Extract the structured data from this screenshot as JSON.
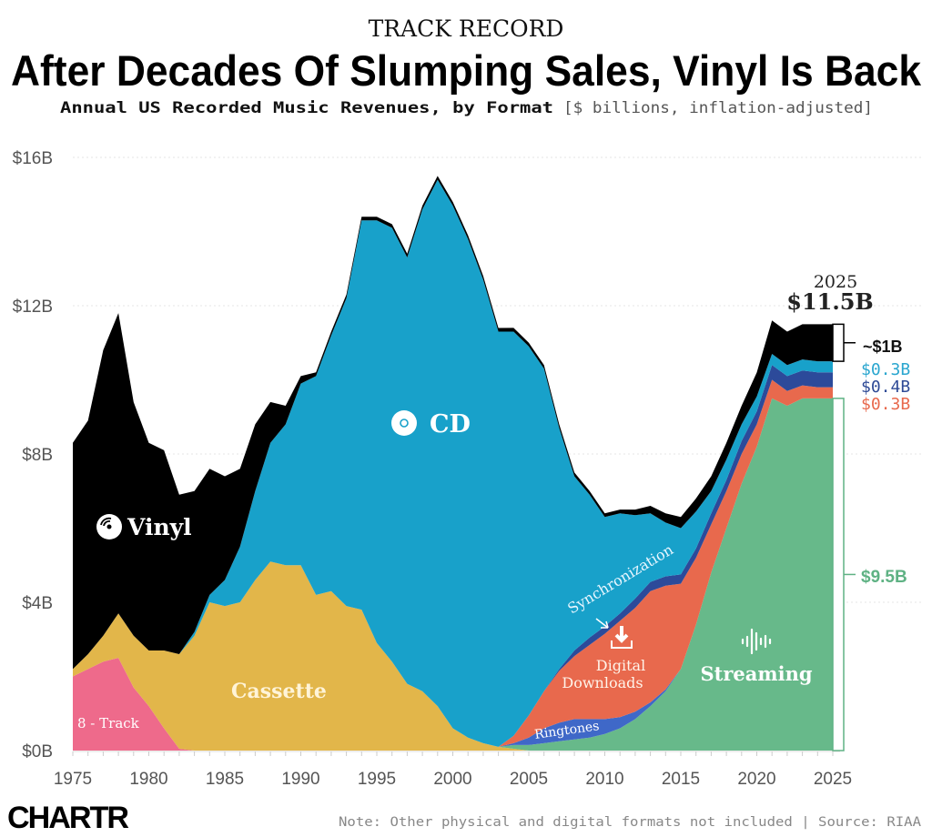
{
  "header": {
    "kicker": "TRACK RECORD",
    "title": "After Decades Of Slumping Sales, Vinyl Is Back",
    "subtitle_bold": "Annual US Recorded Music Revenues, by Format",
    "subtitle_units": "[$ billions, inflation-adjusted]"
  },
  "footer": {
    "logo": "CHARTR",
    "note": "Note: Other physical and digital formats not included | Source: RIAA"
  },
  "chart_data": {
    "type": "area",
    "stacked": true,
    "title": "After Decades Of Slumping Sales, Vinyl Is Back",
    "subtitle": "Annual US Recorded Music Revenues, by Format [$ billions, inflation-adjusted]",
    "xlim": [
      1975,
      2025
    ],
    "ylim": [
      0,
      16
    ],
    "x_ticks": [
      "1975",
      "1980",
      "1985",
      "1990",
      "1995",
      "2000",
      "2005",
      "2010",
      "2015",
      "2020",
      "2025"
    ],
    "y_ticks": [
      "$0B",
      "$4B",
      "$8B",
      "$12B",
      "$16B"
    ],
    "y_tick_values": [
      0,
      4,
      8,
      12,
      16
    ],
    "grid": "horizontal dotted",
    "x": [
      1975,
      1976,
      1977,
      1978,
      1979,
      1980,
      1981,
      1982,
      1983,
      1984,
      1985,
      1986,
      1987,
      1988,
      1989,
      1990,
      1991,
      1992,
      1993,
      1994,
      1995,
      1996,
      1997,
      1998,
      1999,
      2000,
      2001,
      2002,
      2003,
      2004,
      2005,
      2006,
      2007,
      2008,
      2009,
      2010,
      2011,
      2012,
      2013,
      2014,
      2015,
      2016,
      2017,
      2018,
      2019,
      2020,
      2021,
      2022,
      2023,
      2024,
      2025
    ],
    "series": [
      {
        "name": "8 - Track",
        "color": "#ee6a8b",
        "values": [
          2.0,
          2.2,
          2.4,
          2.5,
          1.7,
          1.2,
          0.6,
          0.05,
          0,
          0,
          0,
          0,
          0,
          0,
          0,
          0,
          0,
          0,
          0,
          0,
          0,
          0,
          0,
          0,
          0,
          0,
          0,
          0,
          0,
          0,
          0,
          0,
          0,
          0,
          0,
          0,
          0,
          0,
          0,
          0,
          0,
          0,
          0,
          0,
          0,
          0,
          0,
          0,
          0,
          0,
          0
        ]
      },
      {
        "name": "Cassette",
        "color": "#e2b64a",
        "values": [
          0.2,
          0.4,
          0.7,
          1.2,
          1.4,
          1.5,
          2.1,
          2.55,
          3.1,
          4.0,
          3.9,
          4.0,
          4.6,
          5.1,
          5.0,
          5.0,
          4.2,
          4.3,
          3.9,
          3.8,
          2.9,
          2.4,
          1.8,
          1.6,
          1.2,
          0.6,
          0.35,
          0.2,
          0.1,
          0.05,
          0,
          0,
          0,
          0,
          0,
          0,
          0,
          0,
          0,
          0,
          0,
          0,
          0,
          0,
          0,
          0,
          0,
          0,
          0,
          0,
          0
        ]
      },
      {
        "name": "Streaming",
        "color": "#67b98a",
        "values": [
          0,
          0,
          0,
          0,
          0,
          0,
          0,
          0,
          0,
          0,
          0,
          0,
          0,
          0,
          0,
          0,
          0,
          0,
          0,
          0,
          0,
          0,
          0,
          0,
          0,
          0,
          0,
          0,
          0,
          0.1,
          0.15,
          0.2,
          0.25,
          0.3,
          0.35,
          0.45,
          0.6,
          0.85,
          1.2,
          1.6,
          2.2,
          3.4,
          4.8,
          6.0,
          7.2,
          8.2,
          9.5,
          9.3,
          9.5,
          9.5,
          9.5
        ]
      },
      {
        "name": "Ringtones",
        "color": "#3f68c8",
        "values": [
          0,
          0,
          0,
          0,
          0,
          0,
          0,
          0,
          0,
          0,
          0,
          0,
          0,
          0,
          0,
          0,
          0,
          0,
          0,
          0,
          0,
          0,
          0,
          0,
          0,
          0,
          0,
          0,
          0,
          0.05,
          0.2,
          0.4,
          0.5,
          0.55,
          0.5,
          0.4,
          0.3,
          0.2,
          0.1,
          0.05,
          0,
          0,
          0,
          0,
          0,
          0,
          0,
          0,
          0,
          0,
          0
        ]
      },
      {
        "name": "Digital Downloads",
        "color": "#e8694d",
        "values": [
          0,
          0,
          0,
          0,
          0,
          0,
          0,
          0,
          0,
          0,
          0,
          0,
          0,
          0,
          0,
          0,
          0,
          0,
          0,
          0,
          0,
          0,
          0,
          0,
          0,
          0,
          0,
          0,
          0,
          0.2,
          0.6,
          1.0,
          1.4,
          1.7,
          2.0,
          2.3,
          2.6,
          2.8,
          3.0,
          2.8,
          2.3,
          1.8,
          1.3,
          1.0,
          0.8,
          0.6,
          0.5,
          0.4,
          0.35,
          0.3,
          0.3
        ]
      },
      {
        "name": "Synchronization",
        "color": "#2c4a9a",
        "values": [
          0,
          0,
          0,
          0,
          0,
          0,
          0,
          0,
          0,
          0,
          0,
          0,
          0,
          0,
          0,
          0,
          0,
          0,
          0,
          0,
          0,
          0,
          0,
          0,
          0,
          0,
          0,
          0,
          0,
          0,
          0,
          0,
          0.05,
          0.15,
          0.2,
          0.2,
          0.2,
          0.25,
          0.25,
          0.25,
          0.25,
          0.25,
          0.3,
          0.3,
          0.35,
          0.35,
          0.4,
          0.4,
          0.4,
          0.4,
          0.4
        ]
      },
      {
        "name": "CD",
        "color": "#18a1ca",
        "values": [
          0,
          0,
          0,
          0,
          0,
          0,
          0,
          0,
          0.1,
          0.2,
          0.7,
          1.5,
          2.4,
          3.2,
          3.8,
          4.9,
          5.9,
          6.9,
          8.3,
          10.5,
          11.4,
          11.7,
          11.5,
          13.0,
          14.2,
          14.1,
          13.45,
          12.5,
          11.2,
          10.9,
          9.95,
          8.7,
          6.5,
          4.7,
          3.85,
          2.95,
          2.7,
          2.25,
          1.85,
          1.45,
          1.25,
          1.0,
          0.6,
          0.55,
          0.45,
          0.4,
          0.3,
          0.3,
          0.3,
          0.3,
          0.3
        ]
      },
      {
        "name": "Vinyl",
        "color": "#000000",
        "values": [
          6.1,
          6.3,
          7.7,
          8.1,
          6.3,
          5.6,
          5.4,
          4.3,
          3.8,
          3.4,
          2.8,
          2.1,
          1.8,
          1.1,
          0.5,
          0.2,
          0.1,
          0.1,
          0.1,
          0.1,
          0.1,
          0.1,
          0.1,
          0.1,
          0.1,
          0.1,
          0.1,
          0.1,
          0.1,
          0.1,
          0.1,
          0.1,
          0.1,
          0.1,
          0.1,
          0.1,
          0.1,
          0.15,
          0.2,
          0.25,
          0.3,
          0.35,
          0.4,
          0.45,
          0.5,
          0.65,
          0.9,
          0.9,
          0.95,
          1.0,
          1.0
        ]
      }
    ],
    "annotations": {
      "total_year": "2025",
      "total_value": "$11.5B",
      "vinyl_2025": "~$1B",
      "cd_2025": "$0.3B",
      "sync_2025": "$0.4B",
      "downloads_2025": "$0.3B",
      "streaming_2025": "$9.5B",
      "label_colors": {
        "cd": "#2aa6cf",
        "sync": "#2e4a96",
        "downloads": "#e8694d",
        "streaming": "#5fb284"
      }
    },
    "area_labels": {
      "vinyl": "Vinyl",
      "cd": "CD",
      "cassette": "Cassette",
      "eight_track": "8 - Track",
      "synchronization": "Synchronization",
      "downloads_line1": "Digital",
      "downloads_line2": "Downloads",
      "ringtones": "Ringtones",
      "streaming": "Streaming"
    },
    "icons": {
      "vinyl": "vinyl-record-icon",
      "cd": "cd-disc-icon",
      "downloads": "download-icon",
      "streaming": "sound-wave-icon"
    }
  }
}
